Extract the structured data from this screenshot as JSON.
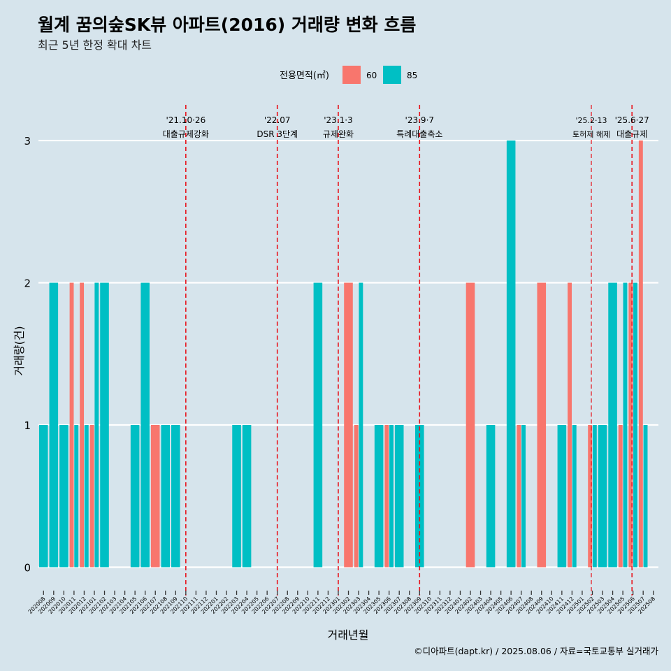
{
  "chart_data": {
    "type": "bar",
    "title": "월계 꿈의숲SK뷰 아파트(2016) 거래량 변화 흐름",
    "subtitle": "최근 5년 한정 확대 차트",
    "xlabel": "거래년월",
    "ylabel": "거래량(건)",
    "ylim": [
      -0.15,
      3.3
    ],
    "yticks": [
      0,
      1,
      2,
      3
    ],
    "grid": true,
    "legend": {
      "title": "전용면적(㎡)",
      "placement": "top",
      "entries": [
        {
          "label": "60",
          "color": "#f8766d"
        },
        {
          "label": "85",
          "color": "#00bfc4"
        }
      ]
    },
    "categories": [
      "202008",
      "202009",
      "202010",
      "202011",
      "202012",
      "202101",
      "202102",
      "202103",
      "202104",
      "202105",
      "202106",
      "202107",
      "202108",
      "202109",
      "202110",
      "202111",
      "202112",
      "202201",
      "202202",
      "202203",
      "202204",
      "202205",
      "202206",
      "202207",
      "202208",
      "202209",
      "202210",
      "202211",
      "202212",
      "202301",
      "202302",
      "202303",
      "202304",
      "202305",
      "202306",
      "202307",
      "202308",
      "202309",
      "202310",
      "202311",
      "202312",
      "202401",
      "202402",
      "202403",
      "202404",
      "202405",
      "202406",
      "202407",
      "202408",
      "202409",
      "202410",
      "202411",
      "202412",
      "202501",
      "202502",
      "202503",
      "202504",
      "202505",
      "202506",
      "202507",
      "202508"
    ],
    "bars": [
      {
        "month": "202008",
        "parts": [
          {
            "size": "85",
            "value": 1
          }
        ]
      },
      {
        "month": "202009",
        "parts": [
          {
            "size": "85",
            "value": 2
          }
        ]
      },
      {
        "month": "202010",
        "parts": [
          {
            "size": "85",
            "value": 1
          }
        ]
      },
      {
        "month": "202011",
        "parts": [
          {
            "size": "60",
            "value": 2
          },
          {
            "size": "85",
            "value": 1
          }
        ]
      },
      {
        "month": "202012",
        "parts": [
          {
            "size": "60",
            "value": 2
          },
          {
            "size": "85",
            "value": 1
          }
        ]
      },
      {
        "month": "202101",
        "parts": [
          {
            "size": "60",
            "value": 1
          },
          {
            "size": "85",
            "value": 2
          }
        ]
      },
      {
        "month": "202102",
        "parts": [
          {
            "size": "85",
            "value": 2
          }
        ]
      },
      {
        "month": "202105",
        "parts": [
          {
            "size": "85",
            "value": 1
          }
        ]
      },
      {
        "month": "202106",
        "parts": [
          {
            "size": "85",
            "value": 2
          }
        ]
      },
      {
        "month": "202107",
        "parts": [
          {
            "size": "60",
            "value": 1
          }
        ]
      },
      {
        "month": "202108",
        "parts": [
          {
            "size": "85",
            "value": 1
          }
        ]
      },
      {
        "month": "202109",
        "parts": [
          {
            "size": "85",
            "value": 1
          }
        ]
      },
      {
        "month": "202203",
        "parts": [
          {
            "size": "85",
            "value": 1
          }
        ]
      },
      {
        "month": "202204",
        "parts": [
          {
            "size": "85",
            "value": 1
          }
        ]
      },
      {
        "month": "202211",
        "parts": [
          {
            "size": "85",
            "value": 2
          }
        ]
      },
      {
        "month": "202302",
        "parts": [
          {
            "size": "60",
            "value": 2
          }
        ]
      },
      {
        "month": "202303",
        "parts": [
          {
            "size": "60",
            "value": 1
          },
          {
            "size": "85",
            "value": 2
          }
        ]
      },
      {
        "month": "202305",
        "parts": [
          {
            "size": "85",
            "value": 1
          }
        ]
      },
      {
        "month": "202306",
        "parts": [
          {
            "size": "60",
            "value": 1
          },
          {
            "size": "85",
            "value": 1
          }
        ]
      },
      {
        "month": "202307",
        "parts": [
          {
            "size": "85",
            "value": 1
          }
        ]
      },
      {
        "month": "202309",
        "parts": [
          {
            "size": "85",
            "value": 1
          }
        ]
      },
      {
        "month": "202402",
        "parts": [
          {
            "size": "60",
            "value": 2
          }
        ]
      },
      {
        "month": "202404",
        "parts": [
          {
            "size": "85",
            "value": 1
          }
        ]
      },
      {
        "month": "202406",
        "parts": [
          {
            "size": "85",
            "value": 3
          }
        ]
      },
      {
        "month": "202407",
        "parts": [
          {
            "size": "60",
            "value": 1
          },
          {
            "size": "85",
            "value": 1
          }
        ]
      },
      {
        "month": "202409",
        "parts": [
          {
            "size": "60",
            "value": 2
          }
        ]
      },
      {
        "month": "202411",
        "parts": [
          {
            "size": "85",
            "value": 1
          }
        ]
      },
      {
        "month": "202412",
        "parts": [
          {
            "size": "60",
            "value": 2
          },
          {
            "size": "85",
            "value": 1
          }
        ]
      },
      {
        "month": "202502",
        "parts": [
          {
            "size": "60",
            "value": 1
          },
          {
            "size": "85",
            "value": 1
          }
        ]
      },
      {
        "month": "202503",
        "parts": [
          {
            "size": "85",
            "value": 1
          }
        ]
      },
      {
        "month": "202504",
        "parts": [
          {
            "size": "85",
            "value": 2
          }
        ]
      },
      {
        "month": "202505",
        "parts": [
          {
            "size": "60",
            "value": 1
          },
          {
            "size": "85",
            "value": 2
          }
        ]
      },
      {
        "month": "202506",
        "parts": [
          {
            "size": "60",
            "value": 2
          },
          {
            "size": "85",
            "value": 2
          }
        ]
      },
      {
        "month": "202507",
        "parts": [
          {
            "size": "60",
            "value": 3
          },
          {
            "size": "85",
            "value": 1
          }
        ]
      }
    ],
    "annotations": [
      {
        "x": 14.5,
        "date": "'21.10·26",
        "label": "대출규제강화"
      },
      {
        "x": 23.5,
        "date": "'22.07",
        "label": "DSR 3단계"
      },
      {
        "x": 29.5,
        "date": "'23.1·3",
        "label": "규제완화"
      },
      {
        "x": 37.5,
        "date": "'23.9·7",
        "label": "특례대출축소"
      },
      {
        "x": 54.4,
        "date": "'25.2·13",
        "label": "토허제 해제"
      },
      {
        "x": 58.4,
        "date": "'25.6·27",
        "label": "대출규제"
      }
    ],
    "caption": "©디아파트(dapt.kr) / 2025.08.06 / 자료=국토교통부 실거래가"
  }
}
